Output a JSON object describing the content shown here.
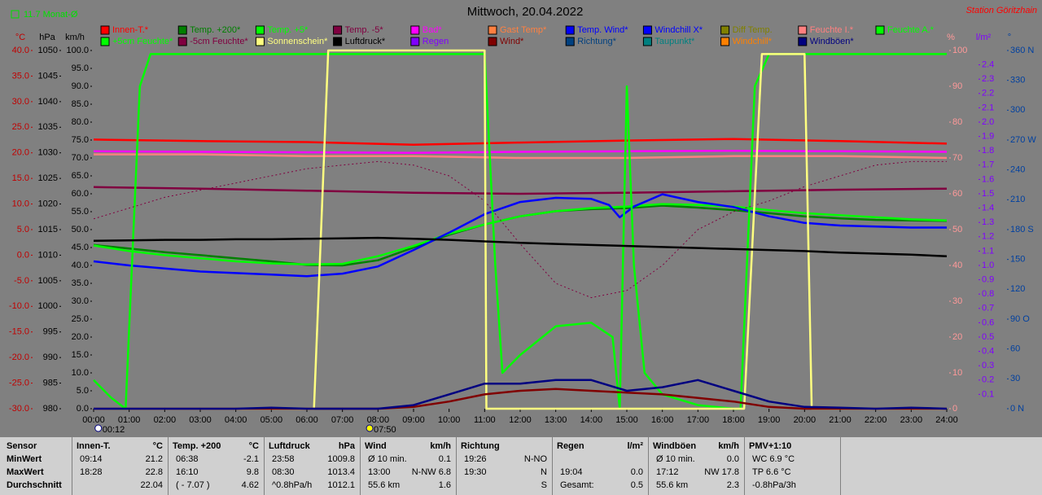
{
  "chart_data": {
    "type": "line",
    "title": "Mittwoch, 20.04.2022",
    "month_avg": "11.7 Monat-Ø",
    "station": "Station Göritzhain",
    "xlim": [
      0,
      24
    ],
    "xticks": [
      {
        "value": 0,
        "label": "00:00"
      },
      {
        "value": 1,
        "label": "01:00"
      },
      {
        "value": 2,
        "label": "02:00"
      },
      {
        "value": 3,
        "label": "03:00"
      },
      {
        "value": 4,
        "label": "04:00"
      },
      {
        "value": 5,
        "label": "05:00"
      },
      {
        "value": 6,
        "label": "06:00"
      },
      {
        "value": 7,
        "label": "07:00"
      },
      {
        "value": 8,
        "label": "08:00"
      },
      {
        "value": 9,
        "label": "09:00"
      },
      {
        "value": 10,
        "label": "10:00"
      },
      {
        "value": 11,
        "label": "11:00"
      },
      {
        "value": 12,
        "label": "12:00"
      },
      {
        "value": 13,
        "label": "13:00"
      },
      {
        "value": 14,
        "label": "14:00"
      },
      {
        "value": 15,
        "label": "15:00"
      },
      {
        "value": 16,
        "label": "16:00"
      },
      {
        "value": 17,
        "label": "17:00"
      },
      {
        "value": 18,
        "label": "18:00"
      },
      {
        "value": 19,
        "label": "19:00"
      },
      {
        "value": 20,
        "label": "20:00"
      },
      {
        "value": 21,
        "label": "21:00"
      },
      {
        "value": 22,
        "label": "22:00"
      },
      {
        "value": 23,
        "label": "23:00"
      },
      {
        "value": 24,
        "label": "24:00"
      }
    ],
    "events": [
      {
        "value": 0.2,
        "label": "00:12"
      },
      {
        "value": 7.8333,
        "label": "07:50"
      }
    ],
    "axes": {
      "temp": {
        "label": "°C",
        "color": "#c00000",
        "lim": [
          -30,
          40
        ],
        "ticks": [
          {
            "value": -30,
            "label": "-30.0"
          },
          {
            "value": -25,
            "label": "-25.0"
          },
          {
            "value": -20,
            "label": "-20.0"
          },
          {
            "value": -15,
            "label": "-15.0"
          },
          {
            "value": -10,
            "label": "-10.0"
          },
          {
            "value": -5,
            "label": "-5.0"
          },
          {
            "value": 0,
            "label": "0.0"
          },
          {
            "value": 5,
            "label": "5.0"
          },
          {
            "value": 10,
            "label": "10.0"
          },
          {
            "value": 15,
            "label": "15.0"
          },
          {
            "value": 20,
            "label": "20.0"
          },
          {
            "value": 25,
            "label": "25.0"
          },
          {
            "value": 30,
            "label": "30.0"
          },
          {
            "value": 35,
            "label": "35.0"
          },
          {
            "value": 40,
            "label": "40.0"
          }
        ]
      },
      "hpa": {
        "label": "hPa",
        "color": "#000000",
        "lim": [
          980,
          1050
        ],
        "ticks": [
          980,
          985,
          990,
          995,
          1000,
          1005,
          1010,
          1015,
          1020,
          1025,
          1030,
          1035,
          1040,
          1045,
          1050
        ]
      },
      "kmh": {
        "label": "km/h",
        "color": "#000000",
        "lim": [
          0,
          100
        ],
        "ticks": [
          {
            "value": 0,
            "label": "0.0"
          },
          {
            "value": 5,
            "label": "5.0"
          },
          {
            "value": 10,
            "label": "10.0"
          },
          {
            "value": 15,
            "label": "15.0"
          },
          {
            "value": 20,
            "label": "20.0"
          },
          {
            "value": 25,
            "label": "25.0"
          },
          {
            "value": 30,
            "label": "30.0"
          },
          {
            "value": 35,
            "label": "35.0"
          },
          {
            "value": 40,
            "label": "40.0"
          },
          {
            "value": 45,
            "label": "45.0"
          },
          {
            "value": 50,
            "label": "50.0"
          },
          {
            "value": 55,
            "label": "55.0"
          },
          {
            "value": 60,
            "label": "60.0"
          },
          {
            "value": 65,
            "label": "65.0"
          },
          {
            "value": 70,
            "label": "70.0"
          },
          {
            "value": 75,
            "label": "75.0"
          },
          {
            "value": 80,
            "label": "80.0"
          },
          {
            "value": 85,
            "label": "85.0"
          },
          {
            "value": 90,
            "label": "90.0"
          },
          {
            "value": 95,
            "label": "95.0"
          },
          {
            "value": 100,
            "label": "100.0"
          }
        ]
      },
      "pct": {
        "label": "%",
        "color": "#ff9999",
        "lim": [
          0,
          100
        ],
        "ticks": [
          0,
          10,
          20,
          30,
          40,
          50,
          60,
          70,
          80,
          90,
          100
        ]
      },
      "rain": {
        "label": "l/m²",
        "color": "#8000ff",
        "lim": [
          0,
          2.5
        ],
        "ticks": [
          0.1,
          0.2,
          0.3,
          0.4,
          0.5,
          0.6,
          0.7,
          0.8,
          0.9,
          {
            "value": 1,
            "label": "1.0"
          },
          1.1,
          1.2,
          1.3,
          1.4,
          1.5,
          1.6,
          1.7,
          1.8,
          1.9,
          {
            "value": 2,
            "label": "2.0"
          },
          2.1,
          2.2,
          2.3,
          2.4
        ]
      },
      "deg": {
        "label": "°",
        "color": "#0040a0",
        "lim": [
          0,
          360
        ],
        "ticks": [
          {
            "value": 0,
            "label": "0 N"
          },
          30,
          60,
          {
            "value": 90,
            "label": "90 O"
          },
          120,
          150,
          {
            "value": 180,
            "label": "180 S"
          },
          210,
          240,
          {
            "value": 270,
            "label": "270 W"
          },
          300,
          330,
          {
            "value": 360,
            "label": "360 N"
          }
        ]
      }
    },
    "series": [
      {
        "name": "Innen-T.*",
        "color": "#ff0000",
        "axis": "temp",
        "x": [
          0,
          3,
          6,
          9,
          12,
          15,
          18,
          21,
          24
        ],
        "values": [
          22.6,
          22.3,
          22.1,
          21.6,
          22.0,
          22.4,
          22.7,
          22.3,
          21.8
        ]
      },
      {
        "name": "Temp. +200*",
        "color": "#008000",
        "axis": "temp",
        "x": [
          0,
          1,
          2,
          3,
          4,
          5,
          6,
          7,
          8,
          9,
          10,
          11,
          12,
          13,
          14,
          15,
          16,
          17,
          18,
          19,
          20,
          21,
          22,
          23,
          24
        ],
        "values": [
          2.0,
          1.3,
          0.6,
          0,
          -0.6,
          -1.2,
          -1.9,
          -2.0,
          -1.0,
          1.5,
          4.0,
          6.0,
          7.6,
          8.6,
          9.0,
          9.2,
          9.7,
          9.3,
          8.8,
          8.2,
          7.6,
          7.2,
          6.9,
          6.8,
          6.7
        ]
      },
      {
        "name": "Temp. +5*",
        "color": "#00ff00",
        "axis": "temp",
        "x": [
          0,
          1,
          2,
          3,
          4,
          5,
          6,
          7,
          8,
          9,
          10,
          11,
          12,
          13,
          14,
          15,
          16,
          17,
          18,
          19,
          20,
          21,
          22,
          23,
          24
        ],
        "values": [
          1.9,
          0.8,
          0,
          -0.6,
          -1.2,
          -1.6,
          -1.8,
          -1.7,
          -0.2,
          1.8,
          4.2,
          6.0,
          7.6,
          8.6,
          9.2,
          9.5,
          10.0,
          9.8,
          9.5,
          8.8,
          8.2,
          7.8,
          7.4,
          7.0,
          6.8
        ]
      },
      {
        "name": "Temp. -5*",
        "color": "#800040",
        "axis": "temp",
        "x": [
          0,
          3,
          6,
          9,
          12,
          15,
          18,
          21,
          24
        ],
        "values": [
          13.3,
          13.0,
          12.6,
          12.2,
          12.0,
          12.2,
          12.5,
          12.8,
          13.0
        ]
      },
      {
        "name": "Bad*",
        "color": "#ff00ff",
        "axis": "temp",
        "x": [
          0,
          3,
          6,
          9,
          12,
          15,
          18,
          21,
          24
        ],
        "values": [
          20.3,
          20.2,
          20.1,
          20.0,
          20.2,
          20.3,
          20.4,
          20.3,
          20.2
        ]
      },
      {
        "name": "Gast Temp*",
        "color": "#ff8040"
      },
      {
        "name": "Temp. Wind*",
        "color": "#0000ff",
        "axis": "temp",
        "x": [
          0,
          1,
          2,
          3,
          4,
          5,
          6,
          7,
          8,
          9,
          10,
          11,
          12,
          13,
          14,
          14.5,
          14.8,
          15.2,
          16,
          17,
          18,
          19,
          20,
          21,
          22,
          23,
          24
        ],
        "values": [
          -1.2,
          -2.0,
          -2.6,
          -3.2,
          -3.5,
          -3.8,
          -4.1,
          -3.6,
          -2.2,
          1.0,
          4.4,
          8.0,
          10.4,
          11.2,
          11.0,
          9.8,
          7.4,
          9.5,
          11.9,
          10.4,
          9.4,
          7.6,
          6.3,
          5.8,
          5.6,
          5.4,
          5.4
        ]
      },
      {
        "name": "Windchill X*",
        "color": "#0000ff"
      },
      {
        "name": "Diff Temp.",
        "color": "#808000"
      },
      {
        "name": "Feuchte I.*",
        "color": "#ff8080",
        "axis": "pct",
        "x": [
          0,
          3,
          6,
          9,
          12,
          15,
          18,
          21,
          24
        ],
        "values": [
          71,
          71,
          70.5,
          70.5,
          70,
          70,
          70.5,
          70.5,
          70
        ]
      },
      {
        "name": "Feuchte A.*",
        "color": "#00ff00"
      },
      {
        "name": "+5cm Feuchte*",
        "color": "#00ff00",
        "axis": "pct",
        "x": [
          0,
          0.5,
          0.9,
          1.3,
          1.6,
          11.0,
          11.3,
          11.5,
          12,
          13,
          14,
          14.6,
          14.8,
          15.0,
          15.2,
          15.5,
          16,
          17,
          18.0,
          18.2,
          18.6,
          19,
          24
        ],
        "values": [
          8,
          3,
          0,
          90,
          99,
          99,
          40,
          10,
          15,
          23,
          24,
          20,
          0,
          90,
          40,
          10,
          4,
          1,
          0,
          0,
          90,
          99,
          99
        ]
      },
      {
        "name": "-5cm Feuchte*",
        "color": "#800040",
        "axis": "pct",
        "style": "dotted",
        "x": [
          0,
          1,
          2,
          3,
          4,
          5,
          6,
          7,
          8,
          9,
          10,
          11,
          12,
          13,
          14,
          15,
          16,
          17,
          18,
          19,
          20,
          21,
          22,
          23,
          24
        ],
        "values": [
          53,
          56,
          59,
          61,
          63,
          65,
          67,
          68,
          69,
          68,
          65,
          58,
          46,
          35,
          31,
          33,
          40,
          50,
          55,
          58,
          62,
          65,
          68,
          69,
          69
        ]
      },
      {
        "name": "Sonnenschein*",
        "color": "#ffff80",
        "axis": "pct",
        "x": [
          0,
          6.2,
          6.6,
          11.0,
          11.05,
          18.3,
          18.8,
          20.0,
          20.2,
          24
        ],
        "values": [
          0,
          0,
          100,
          100,
          0,
          0,
          99,
          99,
          0,
          0
        ]
      },
      {
        "name": "Luftdruck*",
        "color": "#000000",
        "axis": "hpa",
        "x": [
          0,
          1,
          2,
          3,
          4,
          5,
          6,
          7,
          8,
          9,
          10,
          11,
          12,
          13,
          14,
          15,
          16,
          17,
          18,
          19,
          20,
          21,
          22,
          23,
          24
        ],
        "values": [
          1012.8,
          1012.9,
          1013.0,
          1013.0,
          1013.1,
          1013.1,
          1013.2,
          1013.3,
          1013.4,
          1013.2,
          1013.0,
          1012.7,
          1012.4,
          1012.2,
          1012.0,
          1011.8,
          1011.6,
          1011.4,
          1011.2,
          1011.0,
          1010.8,
          1010.5,
          1010.3,
          1010.1,
          1009.8
        ]
      },
      {
        "name": "Regen",
        "color": "#8000ff"
      },
      {
        "name": "Wind*",
        "color": "#800000",
        "axis": "kmh",
        "x": [
          0,
          1,
          2,
          3,
          4,
          5,
          6,
          7,
          8,
          9,
          10,
          11,
          12,
          13,
          14,
          15,
          16,
          17,
          18,
          19,
          20,
          21,
          22,
          23,
          24
        ],
        "values": [
          0,
          0,
          0,
          0,
          0,
          0,
          0,
          0,
          0,
          0.5,
          2,
          4,
          5,
          5.5,
          5,
          4.5,
          4,
          3,
          2,
          0.5,
          0,
          0,
          0,
          0,
          0
        ]
      },
      {
        "name": "Richtung*",
        "color": "#004080"
      },
      {
        "name": "Taupunkt*",
        "color": "#008080"
      },
      {
        "name": "Windchill*",
        "color": "#ff8000"
      },
      {
        "name": "Windböen*",
        "color": "#000080",
        "axis": "kmh",
        "x": [
          0,
          1,
          2,
          3,
          4,
          5,
          6,
          7,
          8,
          9,
          10,
          11,
          12,
          13,
          14,
          15,
          16,
          17,
          18,
          19,
          20,
          21,
          22,
          23,
          24
        ],
        "values": [
          0,
          0,
          0,
          0,
          0,
          0.3,
          0,
          0,
          0,
          1,
          4,
          7,
          7,
          8,
          8,
          5,
          6,
          8,
          5,
          2,
          0.5,
          0.3,
          0,
          0.3,
          0
        ]
      }
    ]
  },
  "table": {
    "header": "Sensor",
    "row_labels": [
      "MinWert",
      "MaxWert",
      "Durchschnitt"
    ],
    "columns": [
      {
        "title": "Innen-T.",
        "unit": "°C",
        "cells": [
          [
            "09:14",
            "21.2"
          ],
          [
            "18:28",
            "22.8"
          ],
          [
            null,
            "22.04"
          ]
        ]
      },
      {
        "title": "Temp. +200",
        "unit": "°C",
        "cells": [
          [
            "06:38",
            "-2.1"
          ],
          [
            "16:10",
            "9.8"
          ],
          [
            "( - 7.07 )",
            "4.62"
          ]
        ]
      },
      {
        "title": "Luftdruck",
        "unit": "hPa",
        "cells": [
          [
            "23:58",
            "1009.8"
          ],
          [
            "08:30",
            "1013.4"
          ],
          [
            "^0.8hPa/h",
            "1012.1"
          ]
        ]
      },
      {
        "title": "Wind",
        "unit": "km/h",
        "cells": [
          [
            "Ø 10 min.",
            "0.1"
          ],
          [
            "13:00",
            "N-NW 6.8"
          ],
          [
            "55.6 km",
            "1.6"
          ]
        ]
      },
      {
        "title": "Richtung",
        "unit": null,
        "cells": [
          [
            "19:26",
            "N-NO"
          ],
          [
            "19:30",
            "N"
          ],
          [
            null,
            "S"
          ]
        ]
      },
      {
        "title": "Regen",
        "unit": "l/m²",
        "cells": [
          [
            null,
            null
          ],
          [
            "19:04",
            "0.0"
          ],
          [
            "Gesamt:",
            "0.5"
          ]
        ]
      },
      {
        "title": "Windböen",
        "unit": "km/h",
        "cells": [
          [
            "Ø 10 min.",
            "0.0"
          ],
          [
            "17:12",
            "NW 17.8"
          ],
          [
            "55.6 km",
            "2.3"
          ]
        ]
      },
      {
        "title": "PMV+1:10",
        "unit": null,
        "cells": [
          [
            "WC 6.9 °C",
            null
          ],
          [
            "TP 6.6 °C",
            null
          ],
          [
            "-0.8hPa/3h",
            null
          ]
        ]
      }
    ]
  }
}
